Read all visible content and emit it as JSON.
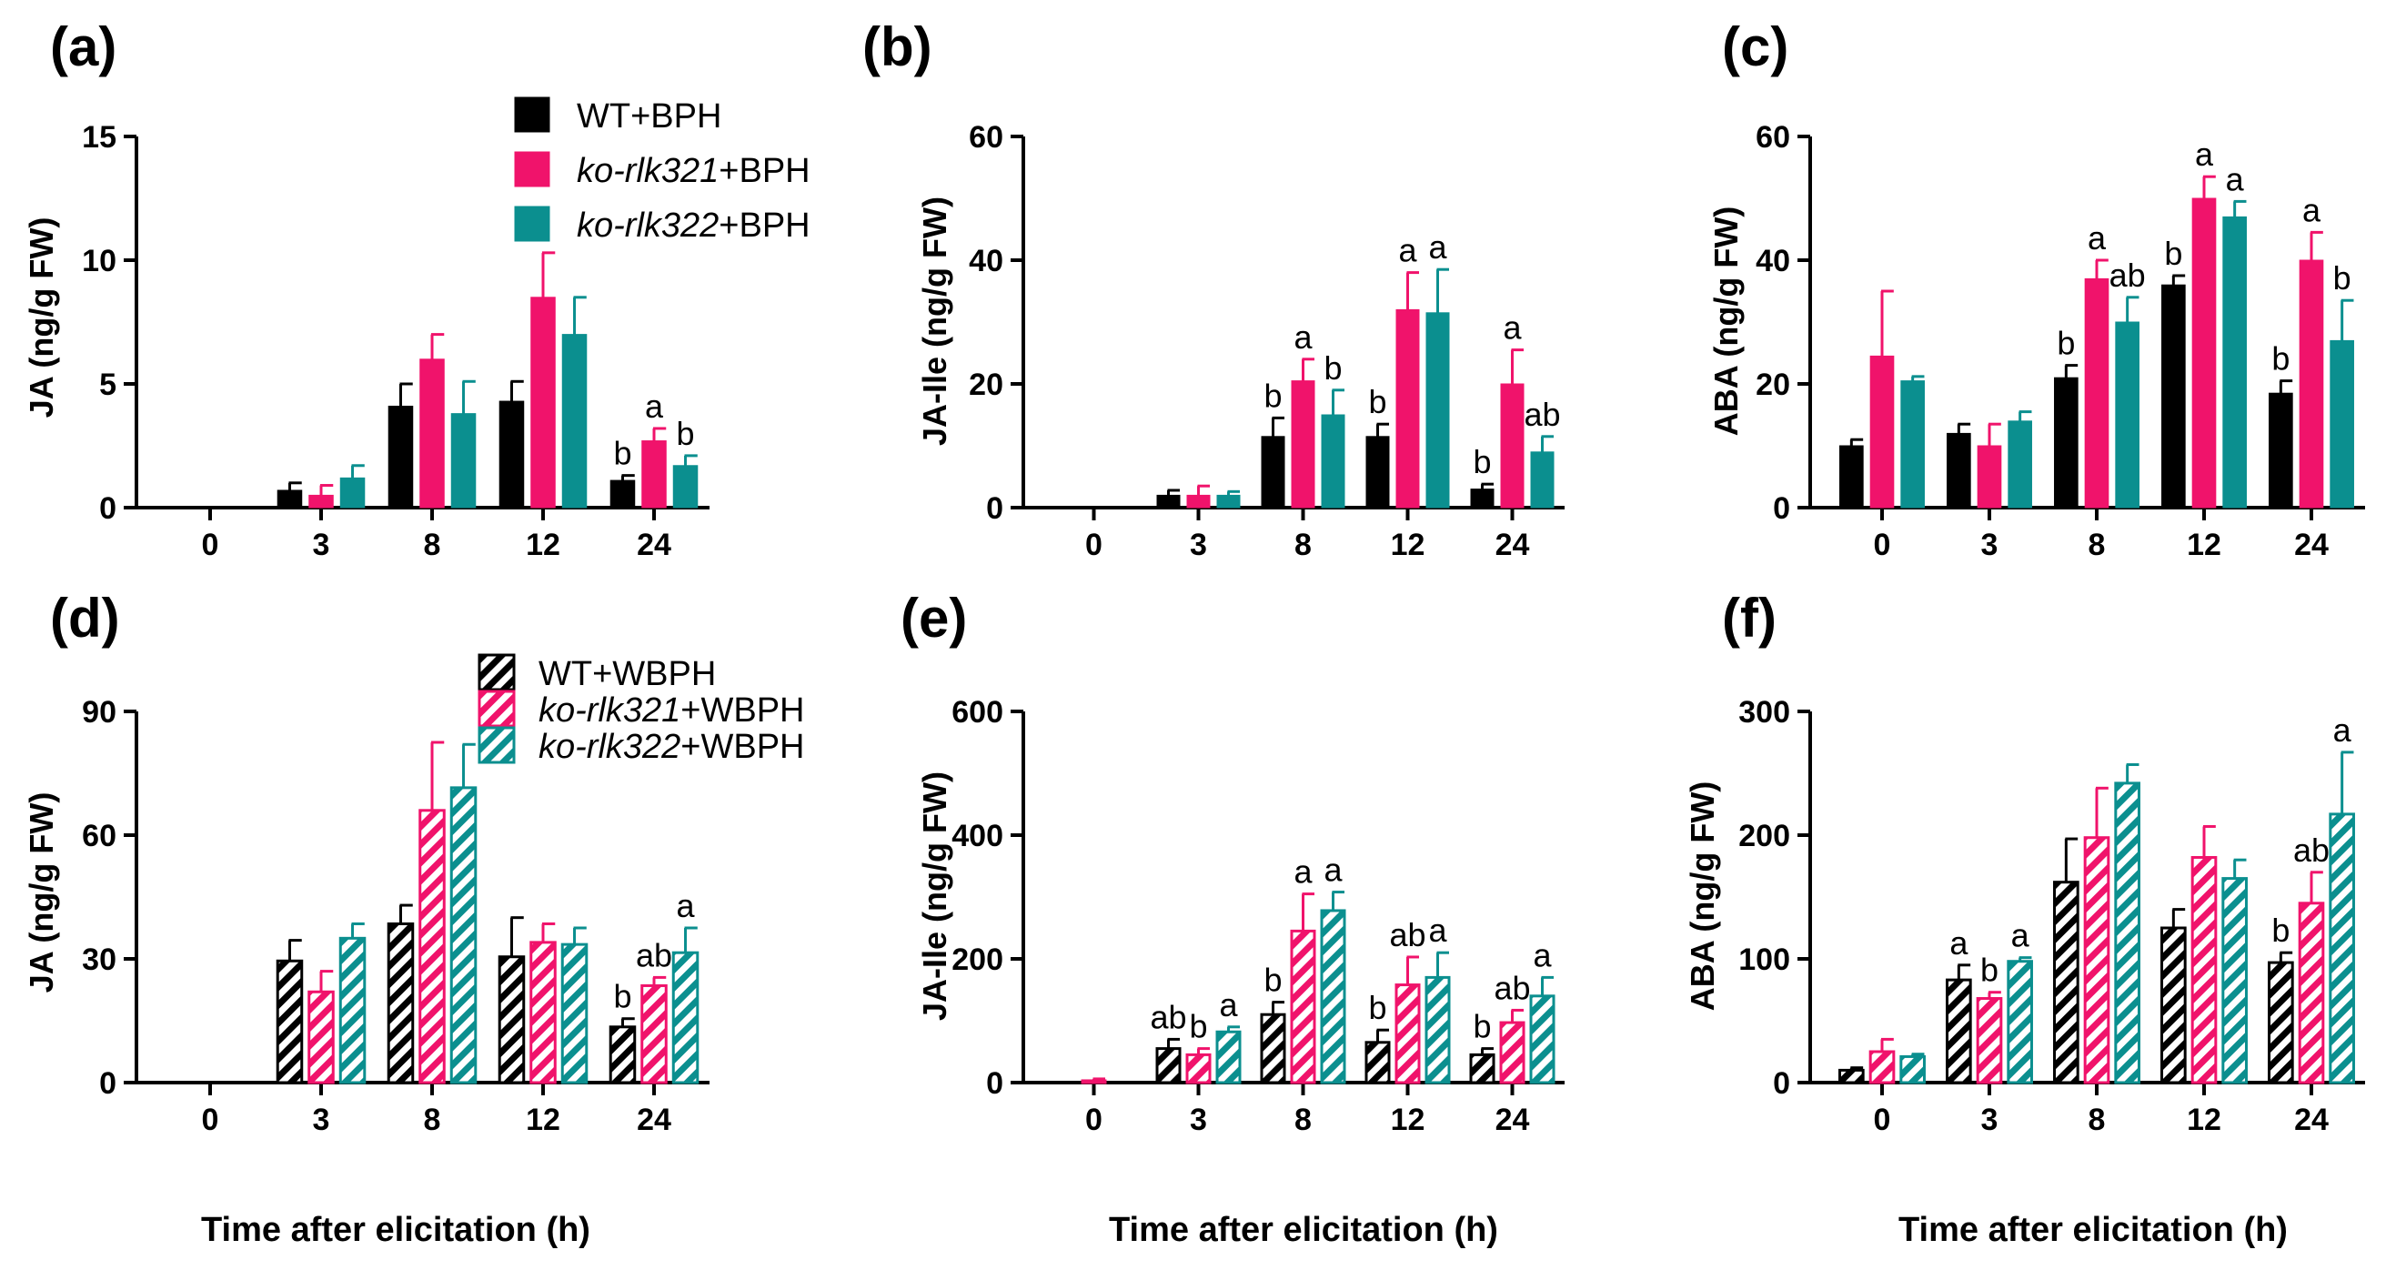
{
  "colors": {
    "wt": "#000000",
    "ko321": "#f0136b",
    "ko322": "#0b8f8f"
  },
  "legend_top": [
    {
      "series": "wt",
      "italic": "",
      "plain": "WT+BPH"
    },
    {
      "series": "ko321",
      "italic": "ko-rlk321",
      "plain": "+BPH"
    },
    {
      "series": "ko322",
      "italic": "ko-rlk322",
      "plain": "+BPH"
    }
  ],
  "legend_bottom": [
    {
      "series": "wt",
      "italic": "",
      "plain": "WT+WBPH"
    },
    {
      "series": "ko321",
      "italic": "ko-rlk321",
      "plain": "+WBPH"
    },
    {
      "series": "ko322",
      "italic": "ko-rlk322",
      "plain": "+WBPH"
    }
  ],
  "chart_data": [
    {
      "panel": "(a)",
      "type": "bar",
      "hatched": false,
      "title": "",
      "xlabel": "",
      "ylabel": "JA (ng/g FW)",
      "categories": [
        "0",
        "3",
        "8",
        "12",
        "24"
      ],
      "ylim": [
        0,
        15
      ],
      "yticks": [
        "0",
        "5",
        "10",
        "15"
      ],
      "series": [
        {
          "name": "WT+BPH",
          "values": [
            0,
            0.7,
            4.1,
            4.3,
            1.1
          ],
          "errors": [
            0,
            0.3,
            0.9,
            0.8,
            0.2
          ],
          "sig": [
            "",
            "",
            "",
            "",
            "b"
          ]
        },
        {
          "name": "ko-rlk321+BPH",
          "values": [
            0,
            0.5,
            6.0,
            8.5,
            2.7
          ],
          "errors": [
            0,
            0.4,
            1.0,
            1.8,
            0.5
          ],
          "sig": [
            "",
            "",
            "",
            "",
            "a"
          ]
        },
        {
          "name": "ko-rlk322+BPH",
          "values": [
            0,
            1.2,
            3.8,
            7.0,
            1.7
          ],
          "errors": [
            0,
            0.5,
            1.3,
            1.5,
            0.4
          ],
          "sig": [
            "",
            "",
            "",
            "",
            "b"
          ]
        }
      ]
    },
    {
      "panel": "(b)",
      "type": "bar",
      "hatched": false,
      "title": "",
      "xlabel": "",
      "ylabel": "JA-Ile (ng/g FW)",
      "categories": [
        "0",
        "3",
        "8",
        "12",
        "24"
      ],
      "ylim": [
        0,
        60
      ],
      "yticks": [
        "0",
        "20",
        "40",
        "60"
      ],
      "series": [
        {
          "name": "WT+BPH",
          "values": [
            0,
            2.0,
            11.5,
            11.5,
            3.0
          ],
          "errors": [
            0,
            0.8,
            3.0,
            2.0,
            0.8
          ],
          "sig": [
            "",
            "",
            "b",
            "b",
            "b"
          ]
        },
        {
          "name": "ko-rlk321+BPH",
          "values": [
            0,
            2.0,
            20.5,
            32.0,
            20.0
          ],
          "errors": [
            0,
            1.5,
            3.5,
            6.0,
            5.5
          ],
          "sig": [
            "",
            "",
            "a",
            "a",
            "a"
          ]
        },
        {
          "name": "ko-rlk322+BPH",
          "values": [
            0,
            2.0,
            15.0,
            31.5,
            9.0
          ],
          "errors": [
            0,
            0.6,
            4.0,
            7.0,
            2.5
          ],
          "sig": [
            "",
            "",
            "b",
            "a",
            "ab"
          ]
        }
      ]
    },
    {
      "panel": "(c)",
      "type": "bar",
      "hatched": false,
      "title": "",
      "xlabel": "",
      "ylabel": "ABA (ng/g FW)",
      "categories": [
        "0",
        "3",
        "8",
        "12",
        "24"
      ],
      "ylim": [
        0,
        60
      ],
      "yticks": [
        "0",
        "20",
        "40",
        "60"
      ],
      "series": [
        {
          "name": "WT+BPH",
          "values": [
            10.0,
            12.0,
            21.0,
            36.0,
            18.5
          ],
          "errors": [
            1.0,
            1.5,
            2.0,
            1.5,
            2.0
          ],
          "sig": [
            "",
            "",
            "b",
            "b",
            "b"
          ]
        },
        {
          "name": "ko-rlk321+BPH",
          "values": [
            24.5,
            10.0,
            37.0,
            50.0,
            40.0
          ],
          "errors": [
            10.5,
            3.5,
            3.0,
            3.5,
            4.5
          ],
          "sig": [
            "",
            "",
            "a",
            "a",
            "a"
          ]
        },
        {
          "name": "ko-rlk322+BPH",
          "values": [
            20.5,
            14.0,
            30.0,
            47.0,
            27.0
          ],
          "errors": [
            0.7,
            1.5,
            4.0,
            2.5,
            6.5
          ],
          "sig": [
            "",
            "",
            "ab",
            "a",
            "b"
          ]
        }
      ]
    },
    {
      "panel": "(d)",
      "type": "bar",
      "hatched": true,
      "title": "",
      "xlabel": "Time after elicitation (h)",
      "ylabel": "JA (ng/g FW)",
      "categories": [
        "0",
        "3",
        "8",
        "12",
        "24"
      ],
      "ylim": [
        0,
        90
      ],
      "yticks": [
        "0",
        "30",
        "60",
        "90"
      ],
      "series": [
        {
          "name": "WT+WBPH",
          "values": [
            0,
            29.5,
            38.5,
            30.5,
            13.5
          ],
          "errors": [
            0,
            5.0,
            4.5,
            9.5,
            2.0
          ],
          "sig": [
            "",
            "",
            "",
            "",
            "b"
          ]
        },
        {
          "name": "ko-rlk321+WBPH",
          "values": [
            0,
            22.0,
            66.0,
            34.0,
            23.5
          ],
          "errors": [
            0,
            5.0,
            16.5,
            4.5,
            2.0
          ],
          "sig": [
            "",
            "",
            "",
            "",
            "ab"
          ]
        },
        {
          "name": "ko-rlk322+WBPH",
          "values": [
            0,
            35.0,
            71.5,
            33.5,
            31.5
          ],
          "errors": [
            0,
            3.5,
            10.5,
            4.0,
            6.0
          ],
          "sig": [
            "",
            "",
            "",
            "",
            "a"
          ]
        }
      ]
    },
    {
      "panel": "(e)",
      "type": "bar",
      "hatched": true,
      "title": "",
      "xlabel": "Time after elicitation (h)",
      "ylabel": "JA-Ile (ng/g FW)",
      "categories": [
        "0",
        "3",
        "8",
        "12",
        "24"
      ],
      "ylim": [
        0,
        600
      ],
      "yticks": [
        "0",
        "200",
        "400",
        "600"
      ],
      "series": [
        {
          "name": "WT+WBPH",
          "values": [
            0,
            55,
            110,
            65,
            45
          ],
          "errors": [
            0,
            15,
            20,
            20,
            10
          ],
          "sig": [
            "",
            "ab",
            "b",
            "b",
            "b"
          ]
        },
        {
          "name": "ko-rlk321+WBPH",
          "values": [
            3,
            45,
            245,
            158,
            97
          ],
          "errors": [
            3,
            10,
            60,
            45,
            20
          ],
          "sig": [
            "",
            "b",
            "a",
            "ab",
            "ab"
          ]
        },
        {
          "name": "ko-rlk322+WBPH",
          "values": [
            0,
            82,
            278,
            170,
            140
          ],
          "errors": [
            0,
            8,
            30,
            40,
            30
          ],
          "sig": [
            "",
            "a",
            "a",
            "a",
            "a"
          ]
        }
      ]
    },
    {
      "panel": "(f)",
      "type": "bar",
      "hatched": true,
      "title": "",
      "xlabel": "Time after elicitation (h)",
      "ylabel": "ABA (ng/g FW)",
      "categories": [
        "0",
        "3",
        "8",
        "12",
        "24"
      ],
      "ylim": [
        0,
        300
      ],
      "yticks": [
        "0",
        "100",
        "200",
        "300"
      ],
      "series": [
        {
          "name": "WT+WBPH",
          "values": [
            10,
            83,
            162,
            125,
            97
          ],
          "errors": [
            2,
            12,
            35,
            15,
            8
          ],
          "sig": [
            "",
            "a",
            "",
            "",
            "b"
          ]
        },
        {
          "name": "ko-rlk321+WBPH",
          "values": [
            25,
            68,
            198,
            182,
            145
          ],
          "errors": [
            10,
            5,
            40,
            25,
            25
          ],
          "sig": [
            "",
            "b",
            "",
            "",
            "ab"
          ]
        },
        {
          "name": "ko-rlk322+WBPH",
          "values": [
            21,
            98,
            242,
            165,
            217
          ],
          "errors": [
            2,
            3,
            15,
            15,
            50
          ],
          "sig": [
            "",
            "a",
            "",
            "",
            "a"
          ]
        }
      ]
    }
  ]
}
